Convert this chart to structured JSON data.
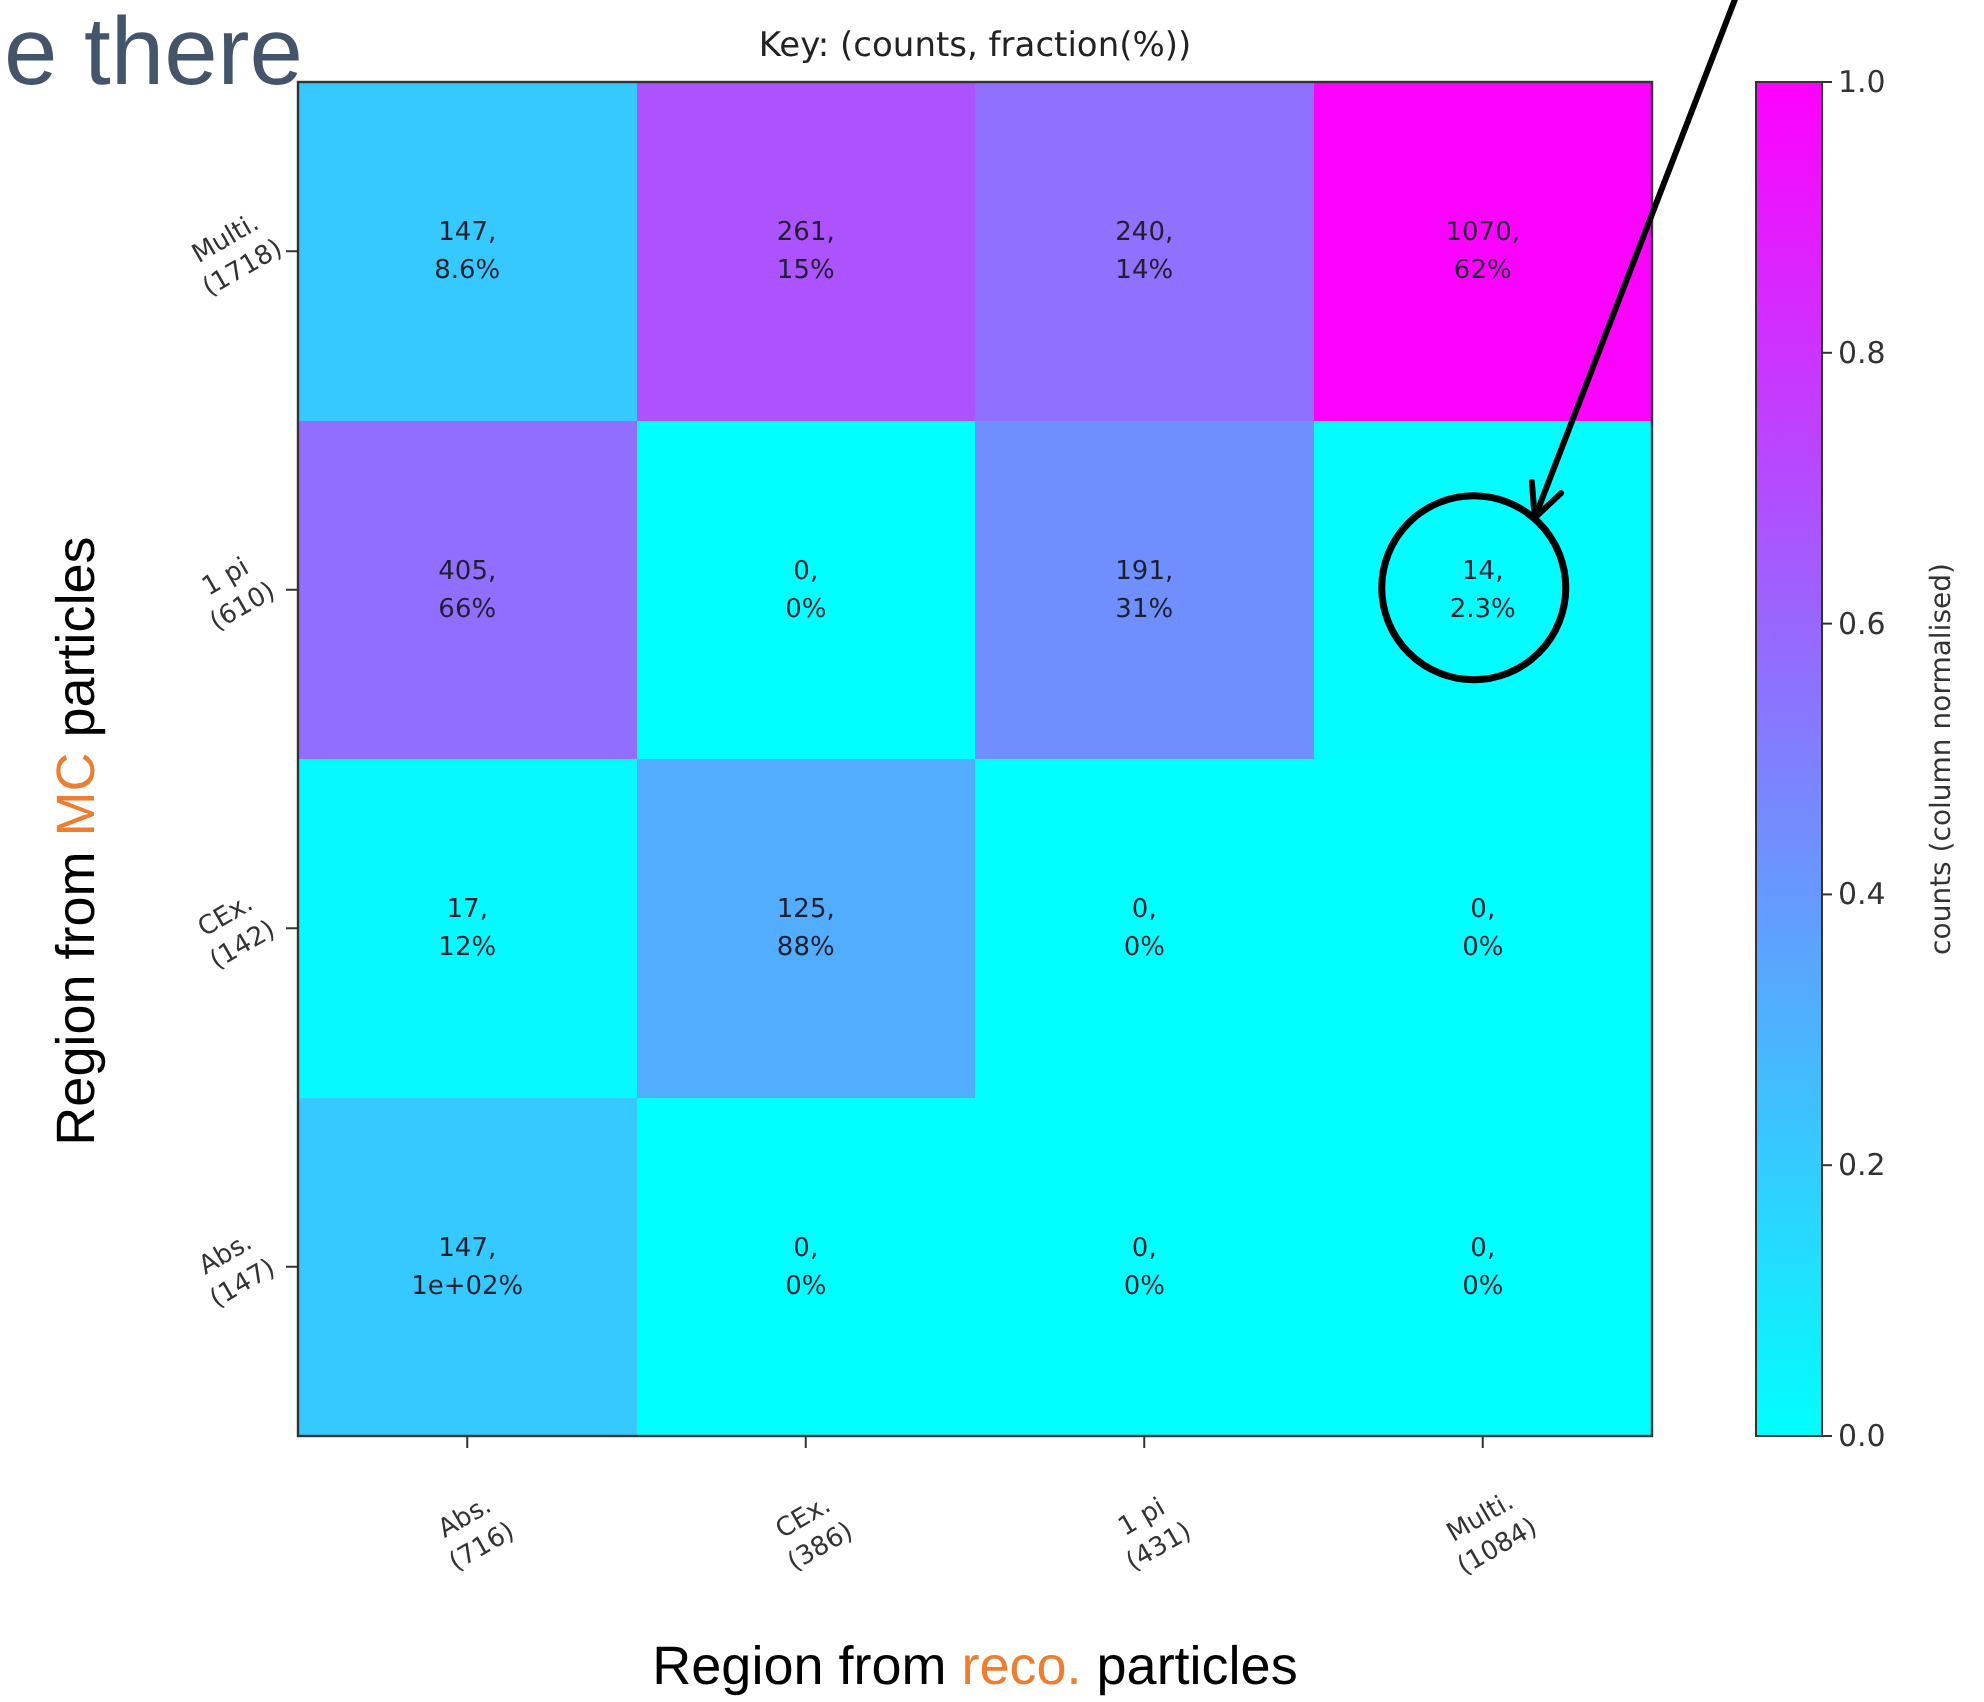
{
  "chart_data": {
    "type": "heatmap",
    "title": "Key: (counts, fraction(%))",
    "xlabel": "Region from reco. particles",
    "ylabel": "Region from MC particles",
    "clabel": "counts (column normalised)",
    "annotations": [
      "e there"
    ],
    "categories": [
      "Abs.\n(716)",
      "CEx.\n(386)",
      "1 pi\n(431)",
      "Multi.\n(1084)"
    ],
    "y_categories": [
      "Multi.\n(1718)",
      "1 pi\n(610)",
      "CEx.\n(142)",
      "Abs.\n(147)"
    ],
    "cells": [
      [
        0.21,
        0.68,
        0.56,
        0.99
      ],
      [
        0.57,
        0,
        0.44,
        0.01
      ],
      [
        0.02,
        0.32,
        0,
        0
      ],
      [
        0.21,
        0,
        0,
        0
      ]
    ],
    "cell_labels": [
      [
        "147,\n8.6%",
        "261,\n15%",
        "240,\n14%",
        "1070,\n62%"
      ],
      [
        "405,\n66%",
        "0,\n0%",
        "191,\n31%",
        "14,\n2.3%"
      ],
      [
        "17,\n12%",
        "125,\n88%",
        "0,\n0%",
        "0,\n0%"
      ],
      [
        "147,\n1e+02%",
        "0,\n0%",
        "0,\n0%",
        "0,\n0%"
      ]
    ],
    "clim": [
      0,
      1
    ],
    "cticks": [
      {
        "value": 0,
        "label": "0.0"
      },
      0.2,
      0.4,
      0.6,
      0.8,
      {
        "value": 1,
        "label": "1.0"
      }
    ]
  }
}
